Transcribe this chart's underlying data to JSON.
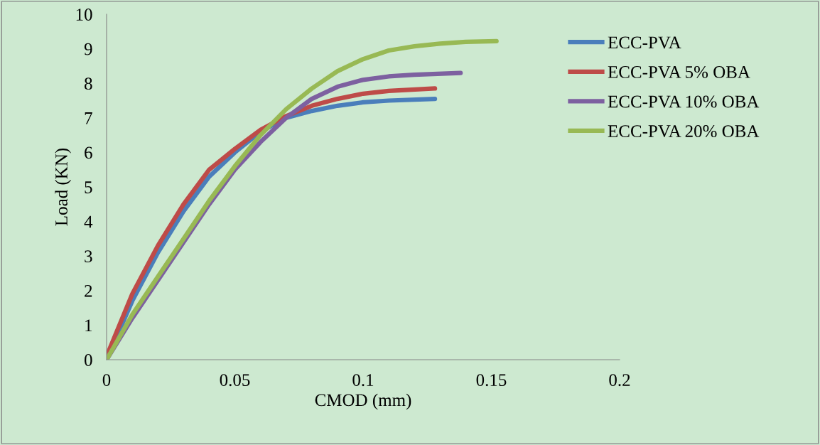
{
  "chart_data": {
    "type": "line",
    "xlabel": "CMOD (mm)",
    "ylabel": "Load (KN)",
    "xlim": [
      0,
      0.2
    ],
    "xticks": [
      {
        "value": 0,
        "label": "0"
      },
      0.05,
      0.1,
      0.15,
      0.2
    ],
    "ylim": [
      0,
      10
    ],
    "yticks": [
      0,
      1,
      2,
      3,
      4,
      5,
      6,
      7,
      8,
      9,
      10
    ],
    "grid": false,
    "legend": "top right",
    "marker": "none",
    "line_style": "solid",
    "series": [
      {
        "name": "ECC-PVA",
        "color": "#4a7ebb",
        "x": [
          0,
          0.01,
          0.02,
          0.03,
          0.04,
          0.05,
          0.06,
          0.07,
          0.08,
          0.09,
          0.1,
          0.11,
          0.128
        ],
        "values": [
          0,
          1.7,
          3.1,
          4.3,
          5.3,
          6.0,
          6.6,
          7.0,
          7.2,
          7.35,
          7.45,
          7.5,
          7.55
        ]
      },
      {
        "name": "ECC-PVA 5% OBA",
        "color": "#be4b48",
        "x": [
          0,
          0.01,
          0.02,
          0.03,
          0.04,
          0.05,
          0.06,
          0.07,
          0.08,
          0.09,
          0.1,
          0.11,
          0.128
        ],
        "values": [
          0.1,
          1.9,
          3.3,
          4.5,
          5.5,
          6.1,
          6.65,
          7.05,
          7.35,
          7.55,
          7.7,
          7.78,
          7.85
        ]
      },
      {
        "name": "ECC-PVA 10% OBA",
        "color": "#7d60a0",
        "x": [
          0,
          0.01,
          0.02,
          0.03,
          0.04,
          0.05,
          0.06,
          0.07,
          0.08,
          0.09,
          0.1,
          0.11,
          0.12,
          0.138
        ],
        "values": [
          0,
          1.2,
          2.3,
          3.4,
          4.5,
          5.5,
          6.3,
          7.0,
          7.55,
          7.9,
          8.1,
          8.2,
          8.25,
          8.3
        ]
      },
      {
        "name": "ECC-PVA 20% OBA",
        "color": "#98b954",
        "x": [
          0,
          0.01,
          0.02,
          0.03,
          0.04,
          0.05,
          0.06,
          0.07,
          0.08,
          0.09,
          0.1,
          0.11,
          0.12,
          0.13,
          0.14,
          0.152
        ],
        "values": [
          0,
          1.3,
          2.4,
          3.5,
          4.6,
          5.6,
          6.5,
          7.25,
          7.85,
          8.35,
          8.7,
          8.95,
          9.07,
          9.15,
          9.2,
          9.22
        ]
      }
    ]
  }
}
